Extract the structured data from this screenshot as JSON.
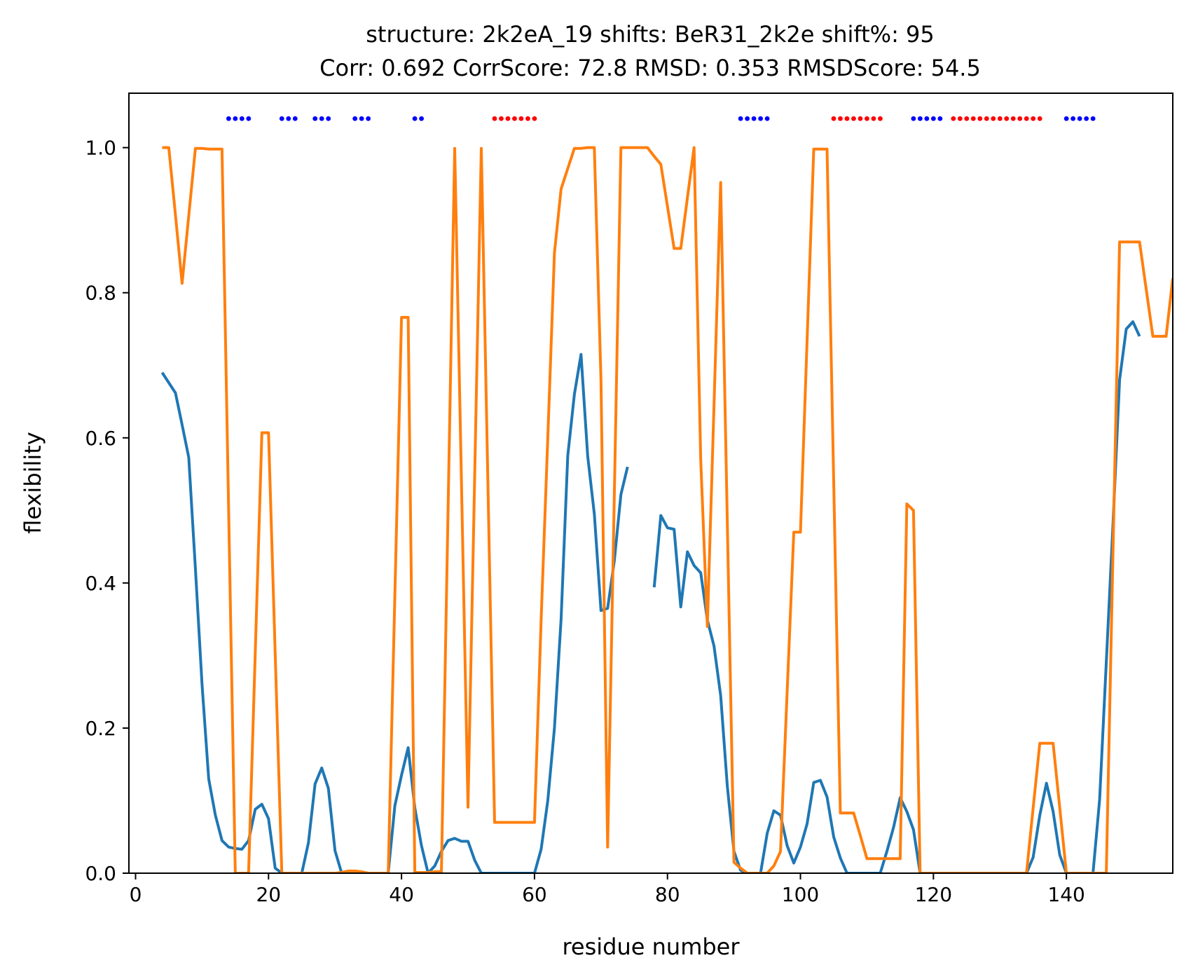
{
  "chart_data": {
    "type": "line",
    "title_lines": [
      "structure: 2k2eA_19 shifts: BeR31_2k2e shift%: 95",
      "Corr: 0.692 CorrScore: 72.8 RMSD: 0.353 RMSDScore: 54.5"
    ],
    "xlabel": "residue number",
    "ylabel": "flexibility",
    "xlim": [
      -1,
      156
    ],
    "ylim": [
      0,
      1.075
    ],
    "xticks": [
      0,
      20,
      40,
      60,
      80,
      100,
      120,
      140
    ],
    "yticks": [
      0.0,
      0.2,
      0.4,
      0.6,
      0.8,
      1.0
    ],
    "xtick_labels": [
      "0",
      "20",
      "40",
      "60",
      "80",
      "100",
      "120",
      "140"
    ],
    "ytick_labels": [
      "0.0",
      "0.2",
      "0.4",
      "0.6",
      "0.8",
      "1.0"
    ],
    "grid": false,
    "legend": "none",
    "series": [
      {
        "color": "#1f77b4",
        "points": [
          [
            4,
            0.69
          ],
          [
            5,
            0.676
          ],
          [
            6,
            0.662
          ],
          [
            7,
            0.618
          ],
          [
            8,
            0.573
          ],
          [
            9,
            0.42
          ],
          [
            10,
            0.26
          ],
          [
            11,
            0.13
          ],
          [
            12,
            0.08
          ],
          [
            13,
            0.045
          ],
          [
            14,
            0.036
          ],
          [
            15,
            0.034
          ],
          [
            16,
            0.033
          ],
          [
            17,
            0.045
          ],
          [
            18,
            0.088
          ],
          [
            19,
            0.095
          ],
          [
            20,
            0.075
          ],
          [
            21,
            0.007
          ],
          [
            22,
            0.0
          ],
          [
            23,
            0.0
          ],
          [
            24,
            0.0
          ],
          [
            25,
            0.0
          ],
          [
            26,
            0.042
          ],
          [
            27,
            0.123
          ],
          [
            28,
            0.145
          ],
          [
            29,
            0.117
          ],
          [
            30,
            0.031
          ],
          [
            31,
            0.0
          ],
          [
            32,
            0.0
          ],
          [
            33,
            0.0
          ],
          [
            34,
            0.0
          ],
          [
            35,
            0.0
          ],
          [
            36,
            0.0
          ],
          [
            37,
            0.0
          ],
          [
            38,
            0.0
          ],
          [
            39,
            0.093
          ],
          [
            40,
            0.135
          ],
          [
            41,
            0.173
          ],
          [
            42,
            0.09
          ],
          [
            43,
            0.038
          ],
          [
            44,
            0.0
          ],
          [
            45,
            0.01
          ],
          [
            46,
            0.03
          ],
          [
            47,
            0.045
          ],
          [
            48,
            0.048
          ],
          [
            49,
            0.044
          ],
          [
            50,
            0.044
          ],
          [
            51,
            0.018
          ],
          [
            52,
            0.0
          ],
          [
            53,
            0.0
          ],
          [
            54,
            0.0
          ],
          [
            55,
            0.0
          ],
          [
            56,
            0.0
          ],
          [
            57,
            0.0
          ],
          [
            58,
            0.0
          ],
          [
            59,
            0.0
          ],
          [
            60,
            0.0
          ],
          [
            61,
            0.033
          ],
          [
            62,
            0.1
          ],
          [
            63,
            0.2
          ],
          [
            64,
            0.35
          ],
          [
            65,
            0.575
          ],
          [
            66,
            0.66
          ],
          [
            67,
            0.715
          ],
          [
            68,
            0.575
          ],
          [
            69,
            0.495
          ],
          [
            70,
            0.362
          ],
          [
            71,
            0.365
          ],
          [
            72,
            0.43
          ],
          [
            73,
            0.522
          ],
          [
            74,
            0.56
          ],
          null,
          [
            78,
            0.394
          ],
          [
            79,
            0.493
          ],
          [
            80,
            0.476
          ],
          [
            81,
            0.474
          ],
          [
            82,
            0.367
          ],
          [
            83,
            0.443
          ],
          [
            84,
            0.424
          ],
          [
            85,
            0.414
          ],
          [
            86,
            0.349
          ],
          [
            87,
            0.313
          ],
          [
            88,
            0.245
          ],
          [
            89,
            0.12
          ],
          [
            90,
            0.03
          ],
          [
            91,
            0.004
          ],
          [
            92,
            0.0
          ],
          [
            93,
            0.0
          ],
          [
            94,
            0.0
          ],
          [
            95,
            0.055
          ],
          [
            96,
            0.086
          ],
          [
            97,
            0.08
          ],
          [
            98,
            0.038
          ],
          [
            99,
            0.014
          ],
          [
            100,
            0.036
          ],
          [
            101,
            0.068
          ],
          [
            102,
            0.125
          ],
          [
            103,
            0.128
          ],
          [
            104,
            0.105
          ],
          [
            105,
            0.05
          ],
          [
            106,
            0.021
          ],
          [
            107,
            0.0
          ],
          [
            108,
            0.0
          ],
          [
            109,
            0.0
          ],
          [
            110,
            0.0
          ],
          [
            111,
            0.0
          ],
          [
            112,
            0.0
          ],
          [
            113,
            0.03
          ],
          [
            114,
            0.063
          ],
          [
            115,
            0.104
          ],
          [
            116,
            0.085
          ],
          [
            117,
            0.06
          ],
          [
            118,
            0.0
          ],
          [
            119,
            0.0
          ],
          [
            120,
            0.0
          ],
          [
            121,
            0.0
          ],
          [
            122,
            0.0
          ],
          [
            123,
            0.0
          ],
          [
            124,
            0.0
          ],
          [
            125,
            0.0
          ],
          [
            126,
            0.0
          ],
          [
            127,
            0.0
          ],
          [
            128,
            0.0
          ],
          [
            129,
            0.0
          ],
          [
            130,
            0.0
          ],
          [
            131,
            0.0
          ],
          [
            132,
            0.0
          ],
          [
            133,
            0.0
          ],
          [
            134,
            0.0
          ],
          [
            135,
            0.022
          ],
          [
            136,
            0.08
          ],
          [
            137,
            0.124
          ],
          [
            138,
            0.085
          ],
          [
            139,
            0.025
          ],
          [
            140,
            0.0
          ],
          [
            141,
            0.0
          ],
          [
            142,
            0.0
          ],
          [
            143,
            0.0
          ],
          [
            144,
            0.0
          ],
          [
            145,
            0.102
          ],
          [
            146,
            0.291
          ],
          [
            147,
            0.48
          ],
          [
            148,
            0.68
          ],
          [
            149,
            0.75
          ],
          [
            150,
            0.76
          ],
          [
            151,
            0.74
          ]
        ]
      },
      {
        "color": "#ff7f0e",
        "points": [
          [
            4,
            1.0
          ],
          [
            5,
            1.0
          ],
          [
            6,
            0.907
          ],
          [
            7,
            0.813
          ],
          [
            8,
            0.906
          ],
          [
            9,
            0.999
          ],
          [
            10,
            0.999
          ],
          [
            11,
            0.998
          ],
          [
            12,
            0.998
          ],
          [
            13,
            0.998
          ],
          [
            14,
            0.5
          ],
          [
            15,
            0.0
          ],
          [
            16,
            0.0
          ],
          [
            17,
            0.0
          ],
          [
            18,
            0.303
          ],
          [
            19,
            0.607
          ],
          [
            20,
            0.607
          ],
          [
            21,
            0.303
          ],
          [
            22,
            0.0
          ],
          [
            23,
            0.0
          ],
          [
            24,
            0.0
          ],
          [
            25,
            0.0
          ],
          [
            26,
            0.0
          ],
          [
            27,
            0.0
          ],
          [
            28,
            0.0
          ],
          [
            29,
            0.0
          ],
          [
            30,
            0.0
          ],
          [
            31,
            0.001
          ],
          [
            32,
            0.003
          ],
          [
            33,
            0.003
          ],
          [
            34,
            0.002
          ],
          [
            35,
            0.0
          ],
          [
            36,
            0.0
          ],
          [
            37,
            0.0
          ],
          [
            38,
            0.0
          ],
          [
            39,
            0.383
          ],
          [
            40,
            0.766
          ],
          [
            41,
            0.766
          ],
          [
            42,
            0.001
          ],
          [
            43,
            0.001
          ],
          [
            44,
            0.001
          ],
          [
            45,
            0.002
          ],
          [
            46,
            0.002
          ],
          [
            47,
            0.5
          ],
          [
            48,
            0.999
          ],
          [
            49,
            0.546
          ],
          [
            50,
            0.091
          ],
          [
            51,
            0.545
          ],
          [
            52,
            0.999
          ],
          [
            53,
            0.535
          ],
          [
            54,
            0.07
          ],
          [
            55,
            0.07
          ],
          [
            56,
            0.07
          ],
          [
            57,
            0.07
          ],
          [
            58,
            0.07
          ],
          [
            59,
            0.07
          ],
          [
            60,
            0.07
          ],
          [
            61,
            0.35
          ],
          [
            62,
            0.6
          ],
          [
            63,
            0.855
          ],
          [
            64,
            0.943
          ],
          [
            65,
            0.971
          ],
          [
            66,
            0.999
          ],
          [
            67,
            0.999
          ],
          [
            68,
            1.0
          ],
          [
            69,
            1.0
          ],
          [
            70,
            0.68
          ],
          [
            71,
            0.036
          ],
          [
            72,
            0.518
          ],
          [
            73,
            1.0
          ],
          [
            74,
            1.0
          ],
          [
            75,
            1.0
          ],
          [
            76,
            1.0
          ],
          [
            77,
            1.0
          ],
          [
            78,
            0.988
          ],
          [
            79,
            0.977
          ],
          [
            80,
            0.919
          ],
          [
            81,
            0.861
          ],
          [
            82,
            0.861
          ],
          [
            83,
            0.931
          ],
          [
            84,
            1.0
          ],
          [
            85,
            0.57
          ],
          [
            86,
            0.34
          ],
          [
            87,
            0.645
          ],
          [
            88,
            0.952
          ],
          [
            89,
            0.484
          ],
          [
            90,
            0.015
          ],
          [
            91,
            0.007
          ],
          [
            92,
            0.0
          ],
          [
            93,
            0.0
          ],
          [
            94,
            0.0
          ],
          [
            95,
            0.0
          ],
          [
            96,
            0.01
          ],
          [
            97,
            0.03
          ],
          [
            98,
            0.25
          ],
          [
            99,
            0.47
          ],
          [
            100,
            0.47
          ],
          [
            101,
            0.735
          ],
          [
            102,
            0.998
          ],
          [
            103,
            0.998
          ],
          [
            104,
            0.998
          ],
          [
            105,
            0.54
          ],
          [
            106,
            0.083
          ],
          [
            107,
            0.083
          ],
          [
            108,
            0.083
          ],
          [
            109,
            0.052
          ],
          [
            110,
            0.02
          ],
          [
            111,
            0.02
          ],
          [
            112,
            0.02
          ],
          [
            113,
            0.02
          ],
          [
            114,
            0.02
          ],
          [
            115,
            0.02
          ],
          [
            116,
            0.509
          ],
          [
            117,
            0.5
          ],
          [
            118,
            0.0
          ],
          [
            119,
            0.0
          ],
          [
            120,
            0.0
          ],
          [
            121,
            0.0
          ],
          [
            122,
            0.0
          ],
          [
            123,
            0.0
          ],
          [
            124,
            0.0
          ],
          [
            125,
            0.0
          ],
          [
            126,
            0.0
          ],
          [
            127,
            0.0
          ],
          [
            128,
            0.0
          ],
          [
            129,
            0.0
          ],
          [
            130,
            0.0
          ],
          [
            131,
            0.0
          ],
          [
            132,
            0.0
          ],
          [
            133,
            0.0
          ],
          [
            134,
            0.0
          ],
          [
            135,
            0.09
          ],
          [
            136,
            0.179
          ],
          [
            137,
            0.179
          ],
          [
            138,
            0.179
          ],
          [
            139,
            0.09
          ],
          [
            140,
            0.0
          ],
          [
            141,
            0.0
          ],
          [
            142,
            0.0
          ],
          [
            143,
            0.0
          ],
          [
            144,
            0.0
          ],
          [
            145,
            0.0
          ],
          [
            146,
            0.0
          ],
          [
            147,
            0.44
          ],
          [
            148,
            0.87
          ],
          [
            149,
            0.87
          ],
          [
            150,
            0.87
          ],
          [
            151,
            0.87
          ],
          [
            152,
            0.805
          ],
          [
            153,
            0.74
          ],
          [
            154,
            0.74
          ],
          [
            155,
            0.74
          ],
          [
            156,
            0.82
          ]
        ]
      }
    ],
    "markers": {
      "y": 1.04,
      "blue_color": "#0000ff",
      "red_color": "#ff0000",
      "blue_x": [
        14,
        15,
        16,
        17,
        22,
        23,
        24,
        27,
        28,
        29,
        33,
        34,
        35,
        42,
        43,
        91,
        92,
        93,
        94,
        95,
        117,
        118,
        119,
        120,
        121,
        140,
        141,
        142,
        143,
        144
      ],
      "red_x": [
        54,
        55,
        56,
        57,
        58,
        59,
        60,
        105,
        106,
        107,
        108,
        109,
        110,
        111,
        112,
        123,
        124,
        125,
        126,
        127,
        128,
        129,
        130,
        131,
        132,
        133,
        134,
        135,
        136
      ]
    }
  }
}
